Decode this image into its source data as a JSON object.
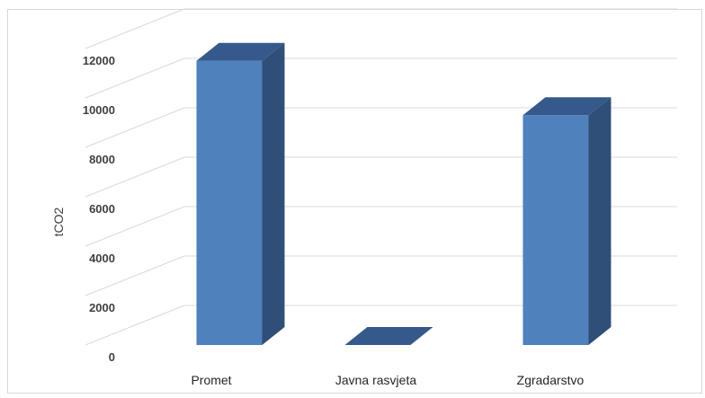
{
  "chart_data": {
    "type": "bar",
    "style": "3d-column",
    "categories": [
      "Promet",
      "Javna rasvjeta",
      "Zgradarstvo"
    ],
    "values": [
      11500,
      0,
      9300
    ],
    "xlabel": "",
    "ylabel": "tCO2",
    "ylim": [
      0,
      12000
    ],
    "yticks": [
      "0",
      "2000",
      "4000",
      "6000",
      "8000",
      "10000",
      "12000"
    ],
    "grid": true,
    "legend": "none",
    "colors": {
      "bar_front": "#4f81bd",
      "bar_side": "#2f4f78",
      "bar_top": "#35598a",
      "gridline": "#d9d9d9"
    }
  }
}
